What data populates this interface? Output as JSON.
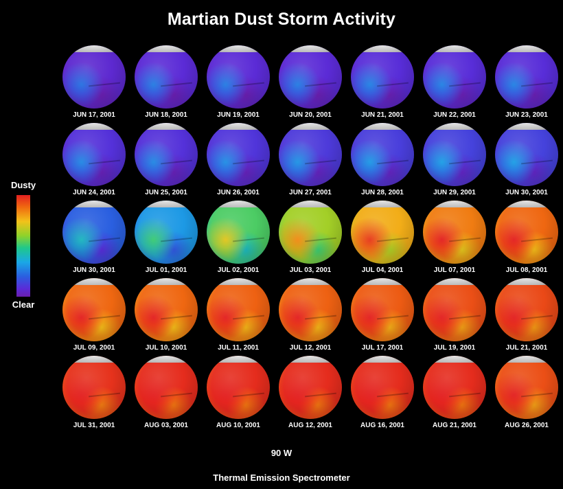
{
  "title": "Martian Dust Storm Activity",
  "legend": {
    "top_label": "Dusty",
    "bottom_label": "Clear",
    "colors": [
      "#e32020",
      "#f06a10",
      "#f2c21a",
      "#8fd22a",
      "#1fc88a",
      "#1aa8e6",
      "#2a5fe0",
      "#5a2bd8",
      "#6a1fb0"
    ]
  },
  "view_label": "90 W",
  "instrument_label": "Thermal Emission Spectrometer",
  "snapshots": [
    {
      "date": "JUN 17, 2001",
      "dust": 0.1
    },
    {
      "date": "JUN 18, 2001",
      "dust": 0.12
    },
    {
      "date": "JUN 19, 2001",
      "dust": 0.12
    },
    {
      "date": "JUN 20, 2001",
      "dust": 0.12
    },
    {
      "date": "JUN 21, 2001",
      "dust": 0.13
    },
    {
      "date": "JUN 22, 2001",
      "dust": 0.13
    },
    {
      "date": "JUN 23, 2001",
      "dust": 0.13
    },
    {
      "date": "JUN 24, 2001",
      "dust": 0.14
    },
    {
      "date": "JUN 25, 2001",
      "dust": 0.14
    },
    {
      "date": "JUN 26, 2001",
      "dust": 0.15
    },
    {
      "date": "JUN 27, 2001",
      "dust": 0.16
    },
    {
      "date": "JUN 28, 2001",
      "dust": 0.17
    },
    {
      "date": "JUN 29, 2001",
      "dust": 0.18
    },
    {
      "date": "JUN 30, 2001",
      "dust": 0.18
    },
    {
      "date": "JUN 30, 2001",
      "dust": 0.25
    },
    {
      "date": "JUL 01, 2001",
      "dust": 0.35
    },
    {
      "date": "JUL 02, 2001",
      "dust": 0.55
    },
    {
      "date": "JUL 03, 2001",
      "dust": 0.65
    },
    {
      "date": "JUL 04, 2001",
      "dust": 0.78
    },
    {
      "date": "JUL 07, 2001",
      "dust": 0.85
    },
    {
      "date": "JUL 08, 2001",
      "dust": 0.88
    },
    {
      "date": "JUL 09, 2001",
      "dust": 0.88
    },
    {
      "date": "JUL 10, 2001",
      "dust": 0.88
    },
    {
      "date": "JUL 11, 2001",
      "dust": 0.89
    },
    {
      "date": "JUL 12, 2001",
      "dust": 0.89
    },
    {
      "date": "JUL 17, 2001",
      "dust": 0.9
    },
    {
      "date": "JUL 19, 2001",
      "dust": 0.92
    },
    {
      "date": "JUL 21, 2001",
      "dust": 0.93
    },
    {
      "date": "JUL 31, 2001",
      "dust": 0.97
    },
    {
      "date": "AUG 03, 2001",
      "dust": 0.98
    },
    {
      "date": "AUG 10, 2001",
      "dust": 0.98
    },
    {
      "date": "AUG 12, 2001",
      "dust": 0.98
    },
    {
      "date": "AUG 16, 2001",
      "dust": 0.98
    },
    {
      "date": "AUG 21, 2001",
      "dust": 0.98
    },
    {
      "date": "AUG 26, 2001",
      "dust": 0.92
    }
  ]
}
